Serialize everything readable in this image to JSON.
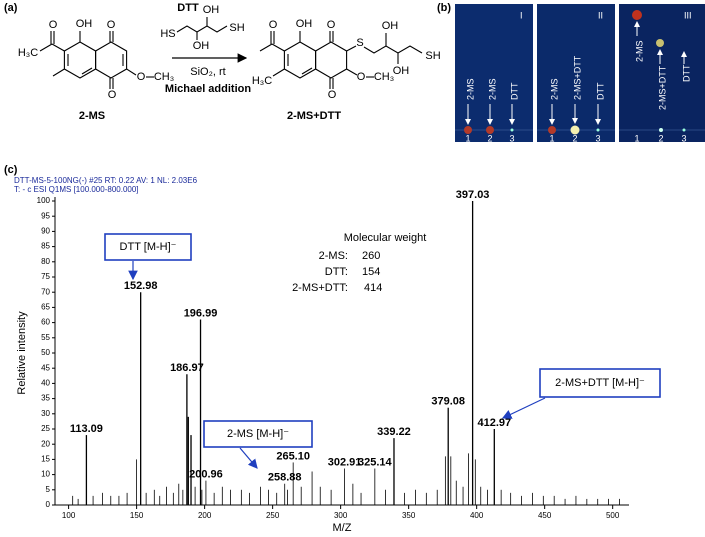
{
  "panel_a": {
    "label": "(a)",
    "reagent": "DTT",
    "reagent_atoms": [
      "HS",
      "OH",
      "OH",
      "SH"
    ],
    "conditions": [
      "SiO₂, rt",
      "Michael addition"
    ],
    "reactant": {
      "name": "2-MS",
      "atoms": [
        "OH",
        "O",
        "O",
        "H₃C",
        "O",
        "CH₃",
        "O"
      ]
    },
    "product": {
      "name": "2-MS+DTT",
      "atoms": [
        "OH",
        "O",
        "O",
        "H₃C",
        "S",
        "OH",
        "OH",
        "SH",
        "O",
        "CH₃",
        "O"
      ]
    }
  },
  "panel_b": {
    "label": "(b)",
    "plates": [
      {
        "numeral": "I",
        "lanes": [
          "2-MS",
          "2-MS",
          "DTT"
        ],
        "lane_numbers": [
          "1",
          "2",
          "3"
        ]
      },
      {
        "numeral": "II",
        "lanes": [
          "2-MS",
          "2-MS+DTT",
          "DTT"
        ],
        "lane_numbers": [
          "1",
          "2",
          "3"
        ]
      },
      {
        "numeral": "III",
        "lanes": [
          "2-MS",
          "2-MS+DTT",
          "DTT"
        ],
        "lane_numbers": [
          "1",
          "2",
          "3"
        ]
      }
    ]
  },
  "panel_c": {
    "label": "(c)"
  },
  "chart_data": {
    "type": "spectrum",
    "header": [
      "DTT-MS-5-100NG(-) #25  RT: 0.22  AV: 1  NL: 2.03E6",
      "T: - c ESI Q1MS [100.000-800.000]"
    ],
    "x_label": "M/Z",
    "y_label": "Relative intensity",
    "xlim": [
      90,
      512
    ],
    "ylim": [
      0,
      100
    ],
    "xticks": [
      100,
      150,
      200,
      250,
      300,
      350,
      400,
      450,
      500
    ],
    "yticks": [
      0,
      5,
      10,
      15,
      20,
      25,
      30,
      35,
      40,
      45,
      50,
      55,
      60,
      65,
      70,
      75,
      80,
      85,
      90,
      95,
      100
    ],
    "color": "#000000",
    "x": [
      103,
      107,
      113.09,
      118,
      125,
      131,
      137,
      143,
      150,
      152.98,
      157,
      163,
      167,
      172,
      177,
      181,
      184,
      186.97,
      188,
      190,
      193,
      196.99,
      198,
      200.96,
      207,
      213,
      219,
      227,
      233,
      241,
      247,
      253,
      258.88,
      261,
      265.1,
      271,
      279,
      285,
      293,
      302.91,
      309,
      315,
      325.14,
      333,
      339.22,
      347,
      355,
      363,
      371,
      377,
      379.08,
      381,
      385,
      390,
      394,
      397.03,
      399,
      403,
      408,
      412.97,
      418,
      425,
      433,
      441,
      449,
      457,
      465,
      473,
      481,
      489,
      497,
      505
    ],
    "values": [
      3,
      2,
      23,
      3,
      4,
      3,
      3,
      4,
      15,
      70,
      4,
      5,
      3,
      6,
      4,
      7,
      5,
      43,
      29,
      23,
      6,
      61,
      5,
      8,
      4,
      6,
      5,
      5,
      4,
      6,
      5,
      4,
      7,
      5,
      14,
      6,
      11,
      6,
      5,
      12,
      7,
      4,
      12,
      5,
      22,
      4,
      5,
      4,
      5,
      16,
      32,
      16,
      8,
      6,
      17,
      100,
      15,
      6,
      5,
      25,
      5,
      4,
      3,
      4,
      3,
      3,
      2,
      3,
      2,
      2,
      2,
      2
    ],
    "x_labels": [
      null,
      null,
      "113.09",
      null,
      null,
      null,
      null,
      null,
      null,
      "152.98",
      null,
      null,
      null,
      null,
      null,
      null,
      null,
      "186.97",
      null,
      null,
      null,
      "196.99",
      null,
      "200.96",
      null,
      null,
      null,
      null,
      null,
      null,
      null,
      null,
      "258.88",
      null,
      "265.10",
      null,
      null,
      null,
      null,
      "302.91",
      null,
      null,
      "325.14",
      null,
      "339.22",
      null,
      null,
      null,
      null,
      null,
      "379.08",
      null,
      null,
      null,
      null,
      "397.03",
      null,
      null,
      null,
      "412.97",
      null,
      null,
      null,
      null,
      null,
      null,
      null,
      null,
      null,
      null,
      null,
      null
    ],
    "annotations": [
      "DTT [M-H]⁻",
      "2-MS [M-H]⁻",
      "2-MS+DTT [M-H]⁻"
    ],
    "molecular_weight": {
      "title": "Molecular weight",
      "rows": [
        [
          "2-MS:",
          "260"
        ],
        [
          "DTT:",
          "154"
        ],
        [
          "2-MS+DTT:",
          "414"
        ]
      ]
    }
  }
}
